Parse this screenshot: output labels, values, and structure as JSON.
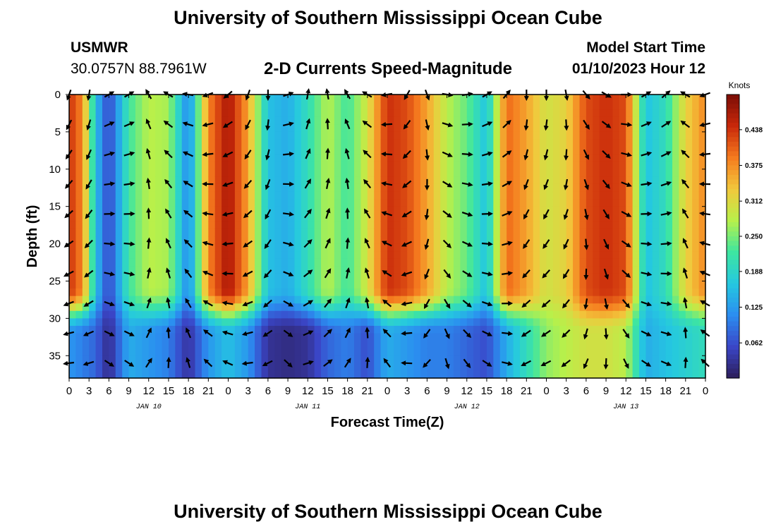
{
  "header": {
    "title": "University of Southern Mississippi Ocean Cube",
    "station": "USMWR",
    "coords": "30.0757N  88.7961W",
    "subtitle": "2-D Currents Speed-Magnitude",
    "model_label": "Model Start Time",
    "model_time": "01/10/2023 Hour 12",
    "footer_title": "University of Southern Mississippi Ocean Cube"
  },
  "chart_data": {
    "type": "heatmap",
    "title": "2-D Currents Speed-Magnitude",
    "xlabel": "Forecast Time(Z)",
    "ylabel": "Depth (ft)",
    "x_ticks": [
      "0",
      "3",
      "6",
      "9",
      "12",
      "15",
      "18",
      "21",
      "0",
      "3",
      "6",
      "9",
      "12",
      "15",
      "18",
      "21",
      "0",
      "3",
      "6",
      "9",
      "12",
      "15",
      "18",
      "21",
      "0",
      "3",
      "6",
      "9",
      "12",
      "15",
      "18",
      "21",
      "0"
    ],
    "x_range_hours": [
      0,
      96
    ],
    "day_labels": [
      {
        "label": "JAN 10",
        "hour": 12
      },
      {
        "label": "JAN 11",
        "hour": 36
      },
      {
        "label": "JAN 12",
        "hour": 60
      },
      {
        "label": "JAN 13",
        "hour": 84
      }
    ],
    "y_ticks": [
      0,
      5,
      10,
      15,
      20,
      25,
      30,
      35
    ],
    "y_range_ft": [
      0,
      38
    ],
    "colorbar": {
      "label": "Knots",
      "range": [
        0,
        0.5
      ],
      "ticks": [
        "0.438",
        "0.375",
        "0.312",
        "0.250",
        "0.188",
        "0.125",
        "0.062"
      ],
      "tick_values": [
        0.438,
        0.375,
        0.312,
        0.25,
        0.188,
        0.125,
        0.062
      ],
      "colors": [
        "#2d1e5a",
        "#3a46c8",
        "#2b8ef0",
        "#25c8e0",
        "#3ee6a0",
        "#b8f04a",
        "#f2c83c",
        "#f57a1e",
        "#c8280a",
        "#7a0d06"
      ]
    },
    "speed_columns": [
      {
        "hour": 0,
        "surface": 0.44,
        "bottom": 0.12
      },
      {
        "hour": 2,
        "surface": 0.38,
        "bottom": 0.1
      },
      {
        "hour": 4,
        "surface": 0.16,
        "bottom": 0.08
      },
      {
        "hour": 6,
        "surface": 0.05,
        "bottom": 0.02
      },
      {
        "hour": 9,
        "surface": 0.22,
        "bottom": 0.14
      },
      {
        "hour": 12,
        "surface": 0.28,
        "bottom": 0.12
      },
      {
        "hour": 15,
        "surface": 0.27,
        "bottom": 0.1
      },
      {
        "hour": 18,
        "surface": 0.1,
        "bottom": 0.03
      },
      {
        "hour": 21,
        "surface": 0.38,
        "bottom": 0.12
      },
      {
        "hour": 24,
        "surface": 0.47,
        "bottom": 0.16
      },
      {
        "hour": 27,
        "surface": 0.36,
        "bottom": 0.12
      },
      {
        "hour": 30,
        "surface": 0.16,
        "bottom": 0.03
      },
      {
        "hour": 33,
        "surface": 0.14,
        "bottom": 0.02
      },
      {
        "hour": 36,
        "surface": 0.2,
        "bottom": 0.03
      },
      {
        "hour": 39,
        "surface": 0.28,
        "bottom": 0.08
      },
      {
        "hour": 42,
        "surface": 0.22,
        "bottom": 0.1
      },
      {
        "hour": 45,
        "surface": 0.3,
        "bottom": 0.06
      },
      {
        "hour": 48,
        "surface": 0.44,
        "bottom": 0.14
      },
      {
        "hour": 51,
        "surface": 0.42,
        "bottom": 0.12
      },
      {
        "hour": 54,
        "surface": 0.36,
        "bottom": 0.1
      },
      {
        "hour": 57,
        "surface": 0.28,
        "bottom": 0.1
      },
      {
        "hour": 60,
        "surface": 0.24,
        "bottom": 0.08
      },
      {
        "hour": 63,
        "surface": 0.16,
        "bottom": 0.06
      },
      {
        "hour": 66,
        "surface": 0.4,
        "bottom": 0.14
      },
      {
        "hour": 69,
        "surface": 0.36,
        "bottom": 0.2
      },
      {
        "hour": 72,
        "surface": 0.3,
        "bottom": 0.26
      },
      {
        "hour": 75,
        "surface": 0.32,
        "bottom": 0.28
      },
      {
        "hour": 78,
        "surface": 0.42,
        "bottom": 0.3
      },
      {
        "hour": 81,
        "surface": 0.44,
        "bottom": 0.3
      },
      {
        "hour": 84,
        "surface": 0.42,
        "bottom": 0.28
      },
      {
        "hour": 87,
        "surface": 0.16,
        "bottom": 0.14
      },
      {
        "hour": 90,
        "surface": 0.2,
        "bottom": 0.16
      },
      {
        "hour": 93,
        "surface": 0.32,
        "bottom": 0.18
      },
      {
        "hour": 96,
        "surface": 0.38,
        "bottom": 0.2
      }
    ],
    "arrow_depths_ft": [
      0,
      4,
      8,
      12,
      16,
      20,
      24,
      28,
      32,
      36
    ],
    "arrow_directions_deg": [
      {
        "hour": 0,
        "deg": 200
      },
      {
        "hour": 3,
        "deg": 190
      },
      {
        "hour": 6,
        "deg": 60
      },
      {
        "hour": 9,
        "deg": 60
      },
      {
        "hour": 12,
        "deg": 330
      },
      {
        "hour": 15,
        "deg": 300
      },
      {
        "hour": 18,
        "deg": 280
      },
      {
        "hour": 21,
        "deg": 250
      },
      {
        "hour": 24,
        "deg": 230
      },
      {
        "hour": 27,
        "deg": 200
      },
      {
        "hour": 30,
        "deg": 180
      },
      {
        "hour": 33,
        "deg": 70
      },
      {
        "hour": 36,
        "deg": 10
      },
      {
        "hour": 39,
        "deg": 350
      },
      {
        "hour": 42,
        "deg": 330
      },
      {
        "hour": 45,
        "deg": 300
      },
      {
        "hour": 48,
        "deg": 260
      },
      {
        "hour": 51,
        "deg": 210
      },
      {
        "hour": 54,
        "deg": 160
      },
      {
        "hour": 57,
        "deg": 100
      },
      {
        "hour": 60,
        "deg": 80
      },
      {
        "hour": 63,
        "deg": 60
      },
      {
        "hour": 66,
        "deg": 40
      },
      {
        "hour": 69,
        "deg": 180
      },
      {
        "hour": 72,
        "deg": 180
      },
      {
        "hour": 75,
        "deg": 170
      },
      {
        "hour": 78,
        "deg": 140
      },
      {
        "hour": 81,
        "deg": 120
      },
      {
        "hour": 84,
        "deg": 90
      },
      {
        "hour": 87,
        "deg": 60
      },
      {
        "hour": 90,
        "deg": 50
      },
      {
        "hour": 93,
        "deg": 300
      },
      {
        "hour": 96,
        "deg": 250
      }
    ]
  }
}
